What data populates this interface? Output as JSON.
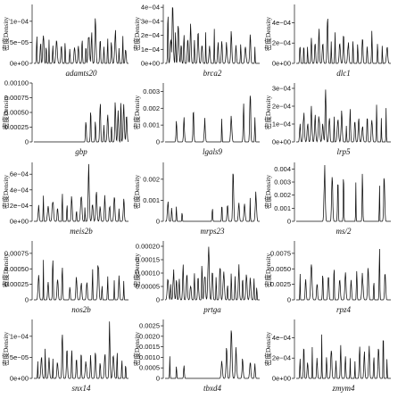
{
  "figure": {
    "background": "#ffffff",
    "line_color": "#111111"
  },
  "chart_data": [
    {
      "type": "line",
      "gene": "adamts20",
      "ylabel": "密度Density",
      "yticks": [
        "1e−04",
        "5e−05",
        "0e+00"
      ],
      "tick_values": [
        0.0001,
        5e-05,
        0
      ],
      "ylim": [
        0,
        0.00014
      ],
      "peaks": [
        [
          0.03,
          0.55
        ],
        [
          0.07,
          0.4
        ],
        [
          0.1,
          0.6
        ],
        [
          0.13,
          0.35
        ],
        [
          0.16,
          0.45
        ],
        [
          0.2,
          0.3
        ],
        [
          0.24,
          0.5
        ],
        [
          0.29,
          0.35
        ],
        [
          0.33,
          0.45
        ],
        [
          0.38,
          0.25
        ],
        [
          0.43,
          0.35
        ],
        [
          0.47,
          0.3
        ],
        [
          0.51,
          0.45
        ],
        [
          0.55,
          0.3
        ],
        [
          0.58,
          0.5
        ],
        [
          0.61,
          0.6
        ],
        [
          0.65,
          1.0
        ],
        [
          0.7,
          0.45
        ],
        [
          0.74,
          0.35
        ],
        [
          0.78,
          0.55
        ],
        [
          0.82,
          0.4
        ],
        [
          0.86,
          0.6
        ],
        [
          0.9,
          0.35
        ],
        [
          0.94,
          0.5
        ],
        [
          0.97,
          0.3
        ]
      ]
    },
    {
      "type": "line",
      "gene": "brca2",
      "ylabel": "密度Density",
      "yticks": [
        "4e−04",
        "3e−04",
        "2e−04",
        "1e−04",
        "0e+00"
      ],
      "tick_values": [
        0.0004,
        0.0003,
        0.0002,
        0.0001,
        0
      ],
      "ylim": [
        0,
        0.00042
      ],
      "peaks": [
        [
          0.03,
          0.9
        ],
        [
          0.06,
          0.5
        ],
        [
          0.08,
          0.95
        ],
        [
          0.11,
          0.6
        ],
        [
          0.14,
          0.8
        ],
        [
          0.17,
          0.4
        ],
        [
          0.2,
          0.65
        ],
        [
          0.24,
          0.5
        ],
        [
          0.27,
          0.7
        ],
        [
          0.31,
          0.45
        ],
        [
          0.35,
          0.6
        ],
        [
          0.39,
          0.4
        ],
        [
          0.43,
          0.55
        ],
        [
          0.47,
          0.35
        ],
        [
          0.52,
          0.7
        ],
        [
          0.56,
          0.4
        ],
        [
          0.6,
          0.5
        ],
        [
          0.65,
          0.35
        ],
        [
          0.7,
          0.55
        ],
        [
          0.75,
          0.3
        ],
        [
          0.8,
          0.45
        ],
        [
          0.85,
          0.35
        ],
        [
          0.9,
          0.5
        ],
        [
          0.95,
          0.3
        ]
      ]
    },
    {
      "type": "line",
      "gene": "dlc1",
      "ylabel": "密度Density",
      "yticks": [
        "4e−04",
        "2e−04",
        "0e+00"
      ],
      "tick_values": [
        0.0004,
        0.0002,
        0
      ],
      "ylim": [
        0,
        0.00058
      ],
      "peaks": [
        [
          0.04,
          0.35
        ],
        [
          0.08,
          0.5
        ],
        [
          0.12,
          0.3
        ],
        [
          0.16,
          0.55
        ],
        [
          0.2,
          0.4
        ],
        [
          0.24,
          0.65
        ],
        [
          0.28,
          0.35
        ],
        [
          0.33,
          0.95
        ],
        [
          0.37,
          0.45
        ],
        [
          0.41,
          0.55
        ],
        [
          0.46,
          0.35
        ],
        [
          0.5,
          0.5
        ],
        [
          0.55,
          0.4
        ],
        [
          0.6,
          0.55
        ],
        [
          0.65,
          0.35
        ],
        [
          0.7,
          0.5
        ],
        [
          0.75,
          0.4
        ],
        [
          0.8,
          0.6
        ],
        [
          0.86,
          0.35
        ],
        [
          0.91,
          0.5
        ],
        [
          0.96,
          0.3
        ]
      ]
    },
    {
      "type": "line",
      "gene": "gbp",
      "ylabel": "密度Density",
      "yticks": [
        "0.00100",
        "0.00075",
        "0.00050",
        "0.00025",
        "0"
      ],
      "tick_values": [
        0.001,
        0.00075,
        0.0005,
        0.00025,
        0
      ],
      "ylim": [
        0,
        0.001
      ],
      "peaks": [
        [
          0.55,
          0.4
        ],
        [
          0.6,
          0.6
        ],
        [
          0.65,
          0.35
        ],
        [
          0.7,
          0.75
        ],
        [
          0.74,
          0.3
        ],
        [
          0.78,
          0.55
        ],
        [
          0.82,
          0.45
        ],
        [
          0.86,
          0.7
        ],
        [
          0.89,
          0.5
        ],
        [
          0.92,
          1.0
        ],
        [
          0.95,
          0.6
        ],
        [
          0.98,
          0.45
        ]
      ]
    },
    {
      "type": "line",
      "gene": "lgals9",
      "ylabel": "密度Density",
      "yticks": [
        "0.003",
        "0.002",
        "0.001",
        "0"
      ],
      "tick_values": [
        0.003,
        0.002,
        0.001,
        0
      ],
      "ylim": [
        0,
        0.0035
      ],
      "peaks": [
        [
          0.12,
          0.35
        ],
        [
          0.2,
          0.45
        ],
        [
          0.3,
          0.6
        ],
        [
          0.42,
          0.4
        ],
        [
          0.6,
          0.55
        ],
        [
          0.7,
          0.45
        ],
        [
          0.83,
          0.65
        ],
        [
          0.9,
          0.95
        ],
        [
          0.95,
          0.5
        ]
      ]
    },
    {
      "type": "line",
      "gene": "lrp5",
      "ylabel": "密度Density",
      "yticks": [
        "3e−04",
        "2e−04",
        "1e−04",
        "0e+00"
      ],
      "tick_values": [
        0.0003,
        0.0002,
        0.0001,
        0
      ],
      "ylim": [
        0,
        0.00033
      ],
      "peaks": [
        [
          0.04,
          0.3
        ],
        [
          0.08,
          0.55
        ],
        [
          0.12,
          0.35
        ],
        [
          0.16,
          0.6
        ],
        [
          0.2,
          0.45
        ],
        [
          0.24,
          0.5
        ],
        [
          0.28,
          0.3
        ],
        [
          0.31,
          0.95
        ],
        [
          0.35,
          0.5
        ],
        [
          0.4,
          0.65
        ],
        [
          0.44,
          0.4
        ],
        [
          0.48,
          0.55
        ],
        [
          0.53,
          0.35
        ],
        [
          0.57,
          0.6
        ],
        [
          0.62,
          0.4
        ],
        [
          0.66,
          0.5
        ],
        [
          0.7,
          0.3
        ],
        [
          0.75,
          0.55
        ],
        [
          0.8,
          0.45
        ],
        [
          0.85,
          0.7
        ],
        [
          0.9,
          0.4
        ],
        [
          0.95,
          0.55
        ]
      ]
    },
    {
      "type": "line",
      "gene": "meis2b",
      "ylabel": "密度Density",
      "yticks": [
        "6e−04",
        "4e−04",
        "2e−04",
        "0e+00"
      ],
      "tick_values": [
        0.0006,
        0.0004,
        0.0002,
        0
      ],
      "ylim": [
        0,
        0.00075
      ],
      "peaks": [
        [
          0.05,
          0.3
        ],
        [
          0.1,
          0.55
        ],
        [
          0.15,
          0.3
        ],
        [
          0.2,
          0.45
        ],
        [
          0.25,
          0.25
        ],
        [
          0.3,
          0.7
        ],
        [
          0.35,
          0.3
        ],
        [
          0.4,
          0.45
        ],
        [
          0.45,
          0.25
        ],
        [
          0.5,
          0.55
        ],
        [
          0.54,
          0.35
        ],
        [
          0.58,
          0.95
        ],
        [
          0.62,
          0.3
        ],
        [
          0.66,
          0.5
        ],
        [
          0.7,
          0.25
        ],
        [
          0.75,
          0.45
        ],
        [
          0.8,
          0.3
        ],
        [
          0.85,
          0.5
        ],
        [
          0.9,
          0.25
        ],
        [
          0.95,
          0.4
        ]
      ]
    },
    {
      "type": "line",
      "gene": "mrps23",
      "ylabel": "密度Density",
      "yticks": [
        "0.002",
        "0.001",
        "0"
      ],
      "tick_values": [
        0.002,
        0.001,
        0
      ],
      "ylim": [
        0,
        0.0028
      ],
      "peaks": [
        [
          0.03,
          0.35
        ],
        [
          0.07,
          0.25
        ],
        [
          0.12,
          0.3
        ],
        [
          0.18,
          0.25
        ],
        [
          0.5,
          0.25
        ],
        [
          0.6,
          0.35
        ],
        [
          0.66,
          0.3
        ],
        [
          0.72,
          0.95
        ],
        [
          0.78,
          0.35
        ],
        [
          0.84,
          0.3
        ],
        [
          0.9,
          0.4
        ],
        [
          0.96,
          0.55
        ]
      ]
    },
    {
      "type": "line",
      "gene": "ms/2",
      "ylabel": "密度Density",
      "yticks": [
        "0.004",
        "0.003",
        "0.002",
        "0.001",
        "0"
      ],
      "tick_values": [
        0.004,
        0.003,
        0.002,
        0.001,
        0
      ],
      "ylim": [
        0,
        0.0045
      ],
      "peaks": [
        [
          0.3,
          0.95
        ],
        [
          0.38,
          0.9
        ],
        [
          0.44,
          0.85
        ],
        [
          0.5,
          1.0
        ],
        [
          0.63,
          0.85
        ],
        [
          0.7,
          0.9
        ],
        [
          0.88,
          0.85
        ],
        [
          0.93,
          0.9
        ]
      ]
    },
    {
      "type": "line",
      "gene": "nos2b",
      "ylabel": "密度Density",
      "yticks": [
        "0.00075",
        "0.00050",
        "0.00025",
        "0"
      ],
      "tick_values": [
        0.00075,
        0.0005,
        0.00025,
        0
      ],
      "ylim": [
        0,
        0.00095
      ],
      "peaks": [
        [
          0.05,
          0.4
        ],
        [
          0.1,
          0.65
        ],
        [
          0.15,
          0.35
        ],
        [
          0.2,
          0.9
        ],
        [
          0.25,
          0.4
        ],
        [
          0.3,
          0.55
        ],
        [
          0.38,
          0.3
        ],
        [
          0.45,
          0.45
        ],
        [
          0.5,
          0.35
        ],
        [
          0.56,
          0.3
        ],
        [
          0.62,
          0.55
        ],
        [
          0.68,
          0.7
        ],
        [
          0.72,
          0.35
        ],
        [
          0.78,
          0.5
        ],
        [
          0.85,
          0.35
        ],
        [
          0.9,
          0.4
        ],
        [
          0.95,
          0.3
        ]
      ]
    },
    {
      "type": "line",
      "gene": "prtga",
      "ylabel": "密度Density",
      "yticks": [
        "0.00020",
        "0.00015",
        "0.00010",
        "0.00005",
        "0"
      ],
      "tick_values": [
        0.0002,
        0.00015,
        0.0001,
        5e-05,
        0
      ],
      "ylim": [
        0,
        0.00022
      ],
      "peaks": [
        [
          0.03,
          0.45
        ],
        [
          0.06,
          0.3
        ],
        [
          0.09,
          0.55
        ],
        [
          0.12,
          0.4
        ],
        [
          0.15,
          0.35
        ],
        [
          0.19,
          0.6
        ],
        [
          0.23,
          0.45
        ],
        [
          0.27,
          0.3
        ],
        [
          0.31,
          0.5
        ],
        [
          0.35,
          0.4
        ],
        [
          0.39,
          0.65
        ],
        [
          0.42,
          0.5
        ],
        [
          0.46,
          0.95
        ],
        [
          0.5,
          0.6
        ],
        [
          0.54,
          0.45
        ],
        [
          0.58,
          0.7
        ],
        [
          0.62,
          0.5
        ],
        [
          0.66,
          0.35
        ],
        [
          0.7,
          0.55
        ],
        [
          0.74,
          0.45
        ],
        [
          0.78,
          0.6
        ],
        [
          0.82,
          0.4
        ],
        [
          0.86,
          0.5
        ],
        [
          0.9,
          0.35
        ],
        [
          0.94,
          0.45
        ],
        [
          0.97,
          0.3
        ]
      ]
    },
    {
      "type": "line",
      "gene": "rpz4",
      "ylabel": "密度Density",
      "yticks": [
        "0.0075",
        "0.0050",
        "0.0025",
        "0"
      ],
      "tick_values": [
        0.0075,
        0.005,
        0.0025,
        0
      ],
      "ylim": [
        0,
        0.0095
      ],
      "peaks": [
        [
          0.04,
          0.55
        ],
        [
          0.1,
          0.4
        ],
        [
          0.16,
          0.65
        ],
        [
          0.22,
          0.35
        ],
        [
          0.28,
          0.6
        ],
        [
          0.34,
          0.5
        ],
        [
          0.4,
          0.7
        ],
        [
          0.46,
          0.45
        ],
        [
          0.52,
          0.55
        ],
        [
          0.58,
          0.4
        ],
        [
          0.64,
          0.65
        ],
        [
          0.7,
          0.45
        ],
        [
          0.76,
          0.6
        ],
        [
          0.82,
          0.35
        ],
        [
          0.88,
          0.95
        ],
        [
          0.94,
          0.55
        ]
      ]
    },
    {
      "type": "line",
      "gene": "snx14",
      "ylabel": "密度Density",
      "yticks": [
        "1e−04",
        "5e−05",
        "0e+00"
      ],
      "tick_values": [
        0.0001,
        5e-05,
        0
      ],
      "ylim": [
        0,
        0.00014
      ],
      "peaks": [
        [
          0.04,
          0.3
        ],
        [
          0.08,
          0.4
        ],
        [
          0.12,
          0.55
        ],
        [
          0.16,
          0.35
        ],
        [
          0.2,
          0.45
        ],
        [
          0.25,
          0.3
        ],
        [
          0.3,
          0.9
        ],
        [
          0.35,
          0.5
        ],
        [
          0.4,
          0.6
        ],
        [
          0.45,
          0.35
        ],
        [
          0.5,
          0.45
        ],
        [
          0.55,
          0.3
        ],
        [
          0.6,
          0.4
        ],
        [
          0.65,
          0.55
        ],
        [
          0.7,
          0.35
        ],
        [
          0.75,
          0.5
        ],
        [
          0.8,
          0.95
        ],
        [
          0.84,
          0.45
        ],
        [
          0.88,
          0.6
        ],
        [
          0.93,
          0.4
        ],
        [
          0.97,
          0.3
        ]
      ]
    },
    {
      "type": "line",
      "gene": "tbxd4",
      "ylabel": "密度Density",
      "yticks": [
        "0.0025",
        "0.0020",
        "0.0015",
        "0.0010",
        "0.0005",
        "0"
      ],
      "tick_values": [
        0.0025,
        0.002,
        0.0015,
        0.001,
        0.0005,
        0
      ],
      "ylim": [
        0,
        0.0028
      ],
      "peaks": [
        [
          0.05,
          0.35
        ],
        [
          0.12,
          0.3
        ],
        [
          0.2,
          0.25
        ],
        [
          0.6,
          0.3
        ],
        [
          0.65,
          0.55
        ],
        [
          0.7,
          0.9
        ],
        [
          0.75,
          0.5
        ],
        [
          0.82,
          0.35
        ],
        [
          0.9,
          0.3
        ],
        [
          0.95,
          0.25
        ]
      ]
    },
    {
      "type": "line",
      "gene": "zmym4",
      "ylabel": "密度Density",
      "yticks": [
        "4e−04",
        "2e−04",
        "0e+00"
      ],
      "tick_values": [
        0.0004,
        0.0002,
        0
      ],
      "ylim": [
        0,
        0.00058
      ],
      "peaks": [
        [
          0.04,
          0.4
        ],
        [
          0.08,
          0.55
        ],
        [
          0.12,
          0.35
        ],
        [
          0.17,
          0.6
        ],
        [
          0.22,
          0.4
        ],
        [
          0.27,
          0.75
        ],
        [
          0.32,
          0.45
        ],
        [
          0.37,
          0.55
        ],
        [
          0.42,
          0.35
        ],
        [
          0.47,
          0.6
        ],
        [
          0.52,
          0.4
        ],
        [
          0.57,
          0.5
        ],
        [
          0.62,
          0.35
        ],
        [
          0.67,
          0.7
        ],
        [
          0.72,
          0.45
        ],
        [
          0.77,
          0.55
        ],
        [
          0.82,
          0.4
        ],
        [
          0.87,
          0.6
        ],
        [
          0.92,
          0.95
        ],
        [
          0.96,
          0.45
        ]
      ]
    }
  ]
}
